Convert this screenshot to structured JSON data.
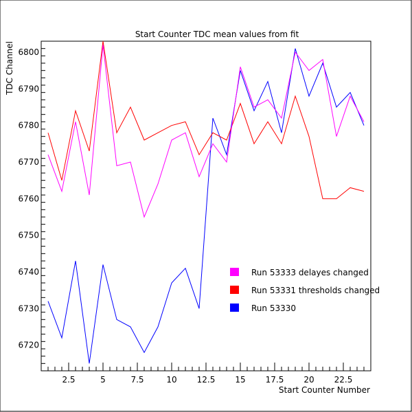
{
  "chart_data": {
    "type": "line",
    "title": "Start Counter TDC mean values from fit",
    "xlabel": "Start Counter Number",
    "ylabel": "TDC Channel",
    "xlim": [
      0.5,
      24.5
    ],
    "ylim": [
      6713,
      6803
    ],
    "x_ticks": [
      2.5,
      5,
      7.5,
      10,
      12.5,
      15,
      17.5,
      20,
      22.5
    ],
    "x_tick_labels": [
      "2.5",
      "5",
      "7.5",
      "10",
      "12.5",
      "15",
      "17.5",
      "20",
      "22.5"
    ],
    "y_ticks": [
      6720,
      6730,
      6740,
      6750,
      6760,
      6770,
      6780,
      6790,
      6800
    ],
    "y_tick_labels": [
      "6720",
      "6730",
      "6740",
      "6750",
      "6760",
      "6770",
      "6780",
      "6790",
      "6800"
    ],
    "grid": false,
    "legend_position": "right",
    "x": [
      1,
      2,
      3,
      4,
      5,
      6,
      7,
      8,
      9,
      10,
      11,
      12,
      13,
      14,
      15,
      16,
      17,
      18,
      19,
      20,
      21,
      22,
      23,
      24
    ],
    "series": [
      {
        "name": "Run 53330",
        "color": "#0000ff",
        "values": [
          6732,
          6722,
          6743,
          6715,
          6742,
          6727,
          6725,
          6718,
          6725,
          6737,
          6741,
          6730,
          6782,
          6772,
          6795,
          6784,
          6792,
          6778,
          6801,
          6788,
          6797,
          6785,
          6789,
          6780
        ]
      },
      {
        "name": "Run 53331 thresholds changed",
        "color": "#ff0000",
        "values": [
          6778,
          6765,
          6784,
          6773,
          6803,
          6778,
          6785,
          6776,
          6778,
          6780,
          6781,
          6772,
          6778,
          6776,
          6786,
          6775,
          6781,
          6775,
          6788,
          6777,
          6760,
          6760,
          6763,
          6762
        ]
      },
      {
        "name": "Run 53333 delayes changed",
        "color": "#ff00ff",
        "values": [
          6772,
          6762,
          6781,
          6761,
          6802,
          6769,
          6770,
          6755,
          6764,
          6776,
          6778,
          6766,
          6775,
          6770,
          6796,
          6785,
          6787,
          6782,
          6800,
          6795,
          6798,
          6777,
          6788,
          6781
        ]
      }
    ],
    "legend_order": [
      "Run 53333 delayes changed",
      "Run 53331 thresholds changed",
      "Run 53330"
    ]
  }
}
